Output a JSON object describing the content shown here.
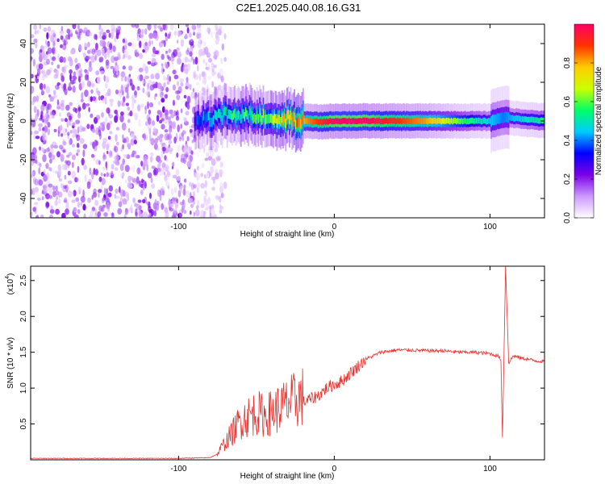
{
  "title": "C2E1.2025.040.08.16.G31",
  "chart_data": [
    {
      "type": "heatmap",
      "title": "C2E1.2025.040.08.16.G31",
      "xlabel": "Height of straight line (km)",
      "ylabel": "Frequency (Hz)",
      "xlim": [
        -195,
        135
      ],
      "ylim": [
        -50,
        50
      ],
      "xticks": [
        -100,
        0,
        100
      ],
      "yticks": [
        -40,
        -20,
        0,
        20,
        40
      ],
      "noise_region_x": [
        -195,
        -80
      ],
      "signal_band": [
        {
          "x": -90,
          "y": 0.0,
          "amp": 0.25
        },
        {
          "x": -80,
          "y": 1.0,
          "amp": 0.4
        },
        {
          "x": -70,
          "y": 3.0,
          "amp": 0.45
        },
        {
          "x": -60,
          "y": 3.5,
          "amp": 0.45
        },
        {
          "x": -50,
          "y": 2.5,
          "amp": 0.5
        },
        {
          "x": -40,
          "y": 1.5,
          "amp": 0.55
        },
        {
          "x": -30,
          "y": 1.0,
          "amp": 0.7
        },
        {
          "x": -20,
          "y": 0.0,
          "amp": 0.8
        },
        {
          "x": -10,
          "y": -0.5,
          "amp": 0.9
        },
        {
          "x": 0,
          "y": 0.0,
          "amp": 1.0
        },
        {
          "x": 20,
          "y": 0.0,
          "amp": 1.0
        },
        {
          "x": 40,
          "y": 0.0,
          "amp": 0.9
        },
        {
          "x": 60,
          "y": 0.0,
          "amp": 0.8
        },
        {
          "x": 80,
          "y": 0.0,
          "amp": 0.6
        },
        {
          "x": 100,
          "y": 0.0,
          "amp": 0.45
        },
        {
          "x": 108,
          "y": 2.0,
          "amp": 0.4
        },
        {
          "x": 135,
          "y": 0.0,
          "amp": 0.55
        }
      ],
      "colorbar": {
        "label": "Normalized spectral amplitude",
        "ticks": [
          0.0,
          0.2,
          0.4,
          0.6,
          0.8
        ],
        "range": [
          0,
          1
        ],
        "colors": [
          "#ffffff",
          "#cc99ff",
          "#7a00e6",
          "#0000ff",
          "#00ccff",
          "#00ff66",
          "#ccff00",
          "#ffcc00",
          "#ff3300",
          "#ff0066"
        ]
      }
    },
    {
      "type": "line",
      "xlabel": "Height of straight line (km)",
      "ylabel": "SNR (10 * v/v)",
      "multiplier_label": "(x10",
      "multiplier_exp": "4",
      "multiplier_close": ")",
      "xlim": [
        -195,
        135
      ],
      "ylim": [
        0,
        2.7
      ],
      "xticks": [
        -100,
        0,
        100
      ],
      "yticks": [
        0.5,
        1.0,
        1.5,
        2.0,
        2.5
      ],
      "series": [
        {
          "color": "#e8312e",
          "x": [
            -195,
            -150,
            -100,
            -80,
            -75,
            -70,
            -65,
            -60,
            -55,
            -50,
            -45,
            -40,
            -35,
            -30,
            -25,
            -20,
            -15,
            -10,
            -5,
            0,
            5,
            10,
            15,
            20,
            25,
            30,
            40,
            50,
            60,
            70,
            80,
            90,
            100,
            105,
            107,
            108,
            110,
            112,
            115,
            120,
            125,
            130,
            135
          ],
          "y": [
            0.02,
            0.02,
            0.02,
            0.03,
            0.08,
            0.22,
            0.35,
            0.5,
            0.55,
            0.6,
            0.55,
            0.6,
            0.65,
            0.7,
            0.75,
            0.8,
            0.85,
            0.9,
            1.0,
            1.05,
            1.1,
            1.2,
            1.3,
            1.4,
            1.45,
            1.5,
            1.53,
            1.53,
            1.52,
            1.52,
            1.5,
            1.5,
            1.48,
            1.45,
            1.4,
            0.3,
            2.7,
            1.35,
            1.45,
            1.42,
            1.4,
            1.38,
            1.37
          ]
        }
      ]
    }
  ]
}
